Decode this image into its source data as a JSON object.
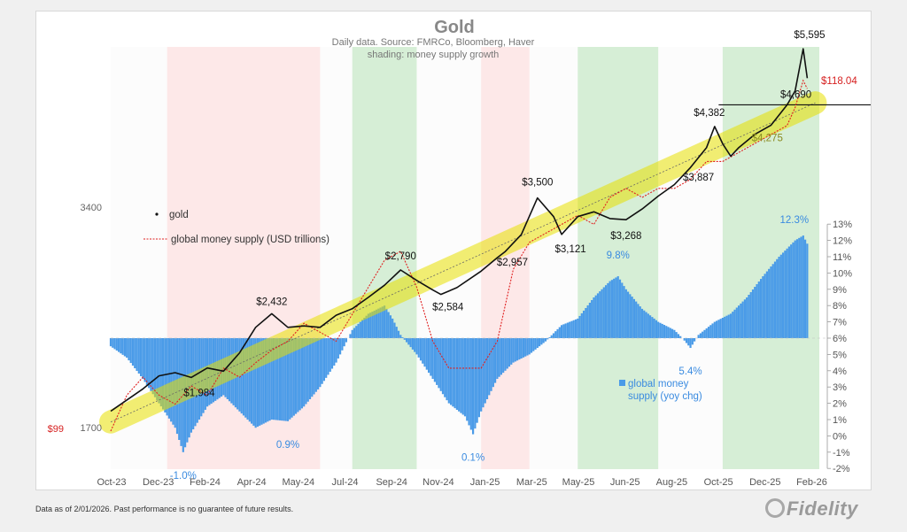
{
  "chart_data": {
    "type": "line",
    "title": "Gold",
    "subtitle_lines": [
      "Daily data.  Source: FMRCo, Bloomberg, Haver",
      "shading: money supply growth"
    ],
    "x_tick_labels": [
      "Oct-23",
      "Dec-23",
      "Feb-24",
      "Apr-24",
      "May-24",
      "Jul-24",
      "Sep-24",
      "Nov-24",
      "Jan-25",
      "Mar-25",
      "May-25",
      "Jun-25",
      "Aug-25",
      "Oct-25",
      "Dec-25",
      "Feb-26"
    ],
    "left_axis": {
      "scale": "log",
      "tick_labels": [
        "3400",
        "1700"
      ],
      "extra_labels": {
        "gold_end": "$5,595",
        "money_supply_end": "$118.04",
        "money_supply_start": "$99"
      }
    },
    "right_axis": {
      "range": [
        -2,
        13
      ],
      "tick_labels": [
        "-2%",
        "-1%",
        "0%",
        "1%",
        "2%",
        "3%",
        "4%",
        "5%",
        "6%",
        "7%",
        "8%",
        "9%",
        "10%",
        "11%",
        "12%",
        "13%"
      ]
    },
    "series": [
      {
        "name": "gold",
        "color": "#111111",
        "points": [
          [
            0,
            1790
          ],
          [
            4,
            1920
          ],
          [
            6,
            2000
          ],
          [
            8,
            2020
          ],
          [
            10,
            1990
          ],
          [
            12,
            2050
          ],
          [
            14,
            2030
          ],
          [
            16,
            2150
          ],
          [
            18,
            2330
          ],
          [
            20,
            2432
          ],
          [
            22,
            2330
          ],
          [
            24,
            2340
          ],
          [
            26,
            2330
          ],
          [
            28,
            2420
          ],
          [
            30,
            2470
          ],
          [
            32,
            2560
          ],
          [
            34,
            2660
          ],
          [
            36,
            2790
          ],
          [
            38,
            2700
          ],
          [
            40,
            2620
          ],
          [
            41,
            2584
          ],
          [
            43,
            2640
          ],
          [
            46,
            2780
          ],
          [
            48,
            2900
          ],
          [
            49,
            2957
          ],
          [
            51,
            3120
          ],
          [
            53,
            3500
          ],
          [
            55,
            3300
          ],
          [
            56,
            3121
          ],
          [
            58,
            3300
          ],
          [
            60,
            3350
          ],
          [
            62,
            3280
          ],
          [
            64,
            3268
          ],
          [
            66,
            3380
          ],
          [
            68,
            3520
          ],
          [
            70,
            3650
          ],
          [
            72,
            3850
          ],
          [
            74,
            4100
          ],
          [
            75,
            4382
          ],
          [
            76,
            4150
          ],
          [
            77,
            3990
          ],
          [
            78,
            4100
          ],
          [
            80,
            4275
          ],
          [
            82,
            4400
          ],
          [
            84,
            4690
          ],
          [
            85,
            4900
          ],
          [
            86,
            5595
          ],
          [
            86.5,
            5100
          ]
        ]
      },
      {
        "name": "global money supply (USD trillions)",
        "color": "#e02020",
        "points": [
          [
            0,
            99
          ],
          [
            2,
            101
          ],
          [
            4,
            102
          ],
          [
            6,
            101
          ],
          [
            8,
            100.5
          ],
          [
            10,
            101.5
          ],
          [
            12,
            101
          ],
          [
            14,
            102.5
          ],
          [
            16,
            102
          ],
          [
            18,
            102.8
          ],
          [
            20,
            103.5
          ],
          [
            22,
            104
          ],
          [
            24,
            105
          ],
          [
            26,
            104.5
          ],
          [
            28,
            104
          ],
          [
            30,
            105.5
          ],
          [
            32,
            107
          ],
          [
            34,
            108.5
          ],
          [
            36,
            109
          ],
          [
            38,
            107
          ],
          [
            40,
            104
          ],
          [
            42,
            102.5
          ],
          [
            44,
            102.5
          ],
          [
            46,
            102.5
          ],
          [
            48,
            104
          ],
          [
            50,
            108
          ],
          [
            52,
            109.5
          ],
          [
            54,
            110
          ],
          [
            56,
            110.5
          ],
          [
            58,
            111
          ],
          [
            60,
            110.5
          ],
          [
            62,
            112
          ],
          [
            64,
            112.5
          ],
          [
            66,
            112
          ],
          [
            68,
            112.5
          ],
          [
            70,
            112.5
          ],
          [
            72,
            113
          ],
          [
            74,
            114
          ],
          [
            76,
            114
          ],
          [
            78,
            114.5
          ],
          [
            80,
            115
          ],
          [
            82,
            115.5
          ],
          [
            84,
            116
          ],
          [
            85,
            117
          ],
          [
            86,
            118.5
          ],
          [
            86.5,
            118.04
          ]
        ]
      },
      {
        "name": "global money supply (yoy chg)",
        "color": "#4a9be8",
        "axis": "right",
        "points": [
          [
            0,
            5.5
          ],
          [
            2,
            4.8
          ],
          [
            4,
            3.5
          ],
          [
            6,
            2.0
          ],
          [
            8,
            0.5
          ],
          [
            9,
            -1.0
          ],
          [
            10,
            0.2
          ],
          [
            12,
            1.8
          ],
          [
            14,
            2.5
          ],
          [
            16,
            1.5
          ],
          [
            18,
            0.5
          ],
          [
            20,
            1.0
          ],
          [
            22,
            0.9
          ],
          [
            24,
            1.8
          ],
          [
            26,
            3.0
          ],
          [
            28,
            4.5
          ],
          [
            30,
            6.5
          ],
          [
            32,
            7.5
          ],
          [
            34,
            8.0
          ],
          [
            35,
            7.2
          ],
          [
            36,
            6.2
          ],
          [
            38,
            5.0
          ],
          [
            40,
            3.5
          ],
          [
            42,
            2.0
          ],
          [
            44,
            1.2
          ],
          [
            45,
            0.1
          ],
          [
            46,
            1.5
          ],
          [
            48,
            3.5
          ],
          [
            50,
            4.5
          ],
          [
            52,
            5.0
          ],
          [
            54,
            5.8
          ],
          [
            56,
            6.8
          ],
          [
            58,
            7.2
          ],
          [
            60,
            8.5
          ],
          [
            62,
            9.5
          ],
          [
            63,
            9.8
          ],
          [
            64,
            9.0
          ],
          [
            66,
            7.8
          ],
          [
            68,
            7.0
          ],
          [
            70,
            6.5
          ],
          [
            71,
            6.0
          ],
          [
            72,
            5.4
          ],
          [
            73,
            6.2
          ],
          [
            75,
            7.0
          ],
          [
            77,
            7.5
          ],
          [
            79,
            8.5
          ],
          [
            81,
            9.8
          ],
          [
            83,
            11.0
          ],
          [
            85,
            12.0
          ],
          [
            86,
            12.3
          ],
          [
            86.5,
            11.8
          ]
        ]
      }
    ],
    "trendline": {
      "from": [
        0,
        1730
      ],
      "to": [
        87.5,
        4720
      ],
      "color": "#e8e000"
    },
    "reference_line": {
      "value": 4690,
      "color": "#111111"
    },
    "annotations": {
      "gold": [
        {
          "text": "$1,984",
          "x": 11,
          "y": 1984
        },
        {
          "text": "$2,432",
          "x": 20,
          "y": 2432
        },
        {
          "text": "$2,790",
          "x": 36,
          "y": 2790
        },
        {
          "text": "$2,584",
          "x": 41,
          "y": 2584
        },
        {
          "text": "$2,957",
          "x": 49,
          "y": 2957
        },
        {
          "text": "$3,500",
          "x": 53,
          "y": 3500
        },
        {
          "text": "$3,121",
          "x": 56,
          "y": 3121
        },
        {
          "text": "$3,268",
          "x": 64,
          "y": 3268
        },
        {
          "text": "$3,887",
          "x": 73,
          "y": 3887
        },
        {
          "text": "$4,382",
          "x": 75,
          "y": 4382
        },
        {
          "text": "$4,690",
          "x": 84,
          "y": 4690
        },
        {
          "text": "$4,275",
          "x": 80,
          "y": 4275
        }
      ],
      "yoy": [
        {
          "text": "-1.0%",
          "x": 9,
          "y": -1.0
        },
        {
          "text": "0.9%",
          "x": 22,
          "y": 0.9
        },
        {
          "text": "0.1%",
          "x": 45,
          "y": 0.1
        },
        {
          "text": "9.8%",
          "x": 63,
          "y": 9.8
        },
        {
          "text": "5.4%",
          "x": 72,
          "y": 5.4
        },
        {
          "text": "12.3%",
          "x": 86,
          "y": 12.3
        }
      ]
    },
    "legend": {
      "placement": "left",
      "entries": [
        "gold",
        "global money supply (USD trillions)"
      ],
      "bar_entry_lines": [
        "global money",
        "supply (yoy chg)"
      ]
    },
    "shading": {
      "description": "money supply growth",
      "segments": [
        {
          "from": 0,
          "to": 7,
          "tone": "neutral"
        },
        {
          "from": 7,
          "to": 26,
          "tone": "red"
        },
        {
          "from": 26,
          "to": 30,
          "tone": "neutral"
        },
        {
          "from": 30,
          "to": 38,
          "tone": "green"
        },
        {
          "from": 38,
          "to": 46,
          "tone": "neutral"
        },
        {
          "from": 46,
          "to": 52,
          "tone": "red"
        },
        {
          "from": 52,
          "to": 58,
          "tone": "neutral"
        },
        {
          "from": 58,
          "to": 68,
          "tone": "green"
        },
        {
          "from": 68,
          "to": 76,
          "tone": "neutral"
        },
        {
          "from": 76,
          "to": 88,
          "tone": "green"
        }
      ]
    }
  },
  "footer": {
    "disclaimer": "Data as of 2/01/2026. Past performance is no guarantee of future results.",
    "logo_text": "Fidelity"
  },
  "colors": {
    "gold": "#111111",
    "money": "#e02020",
    "bars": "#4a9be8",
    "highlight": "#e8e000",
    "money_label": "#d62020",
    "bar_label": "#3a8be0"
  }
}
